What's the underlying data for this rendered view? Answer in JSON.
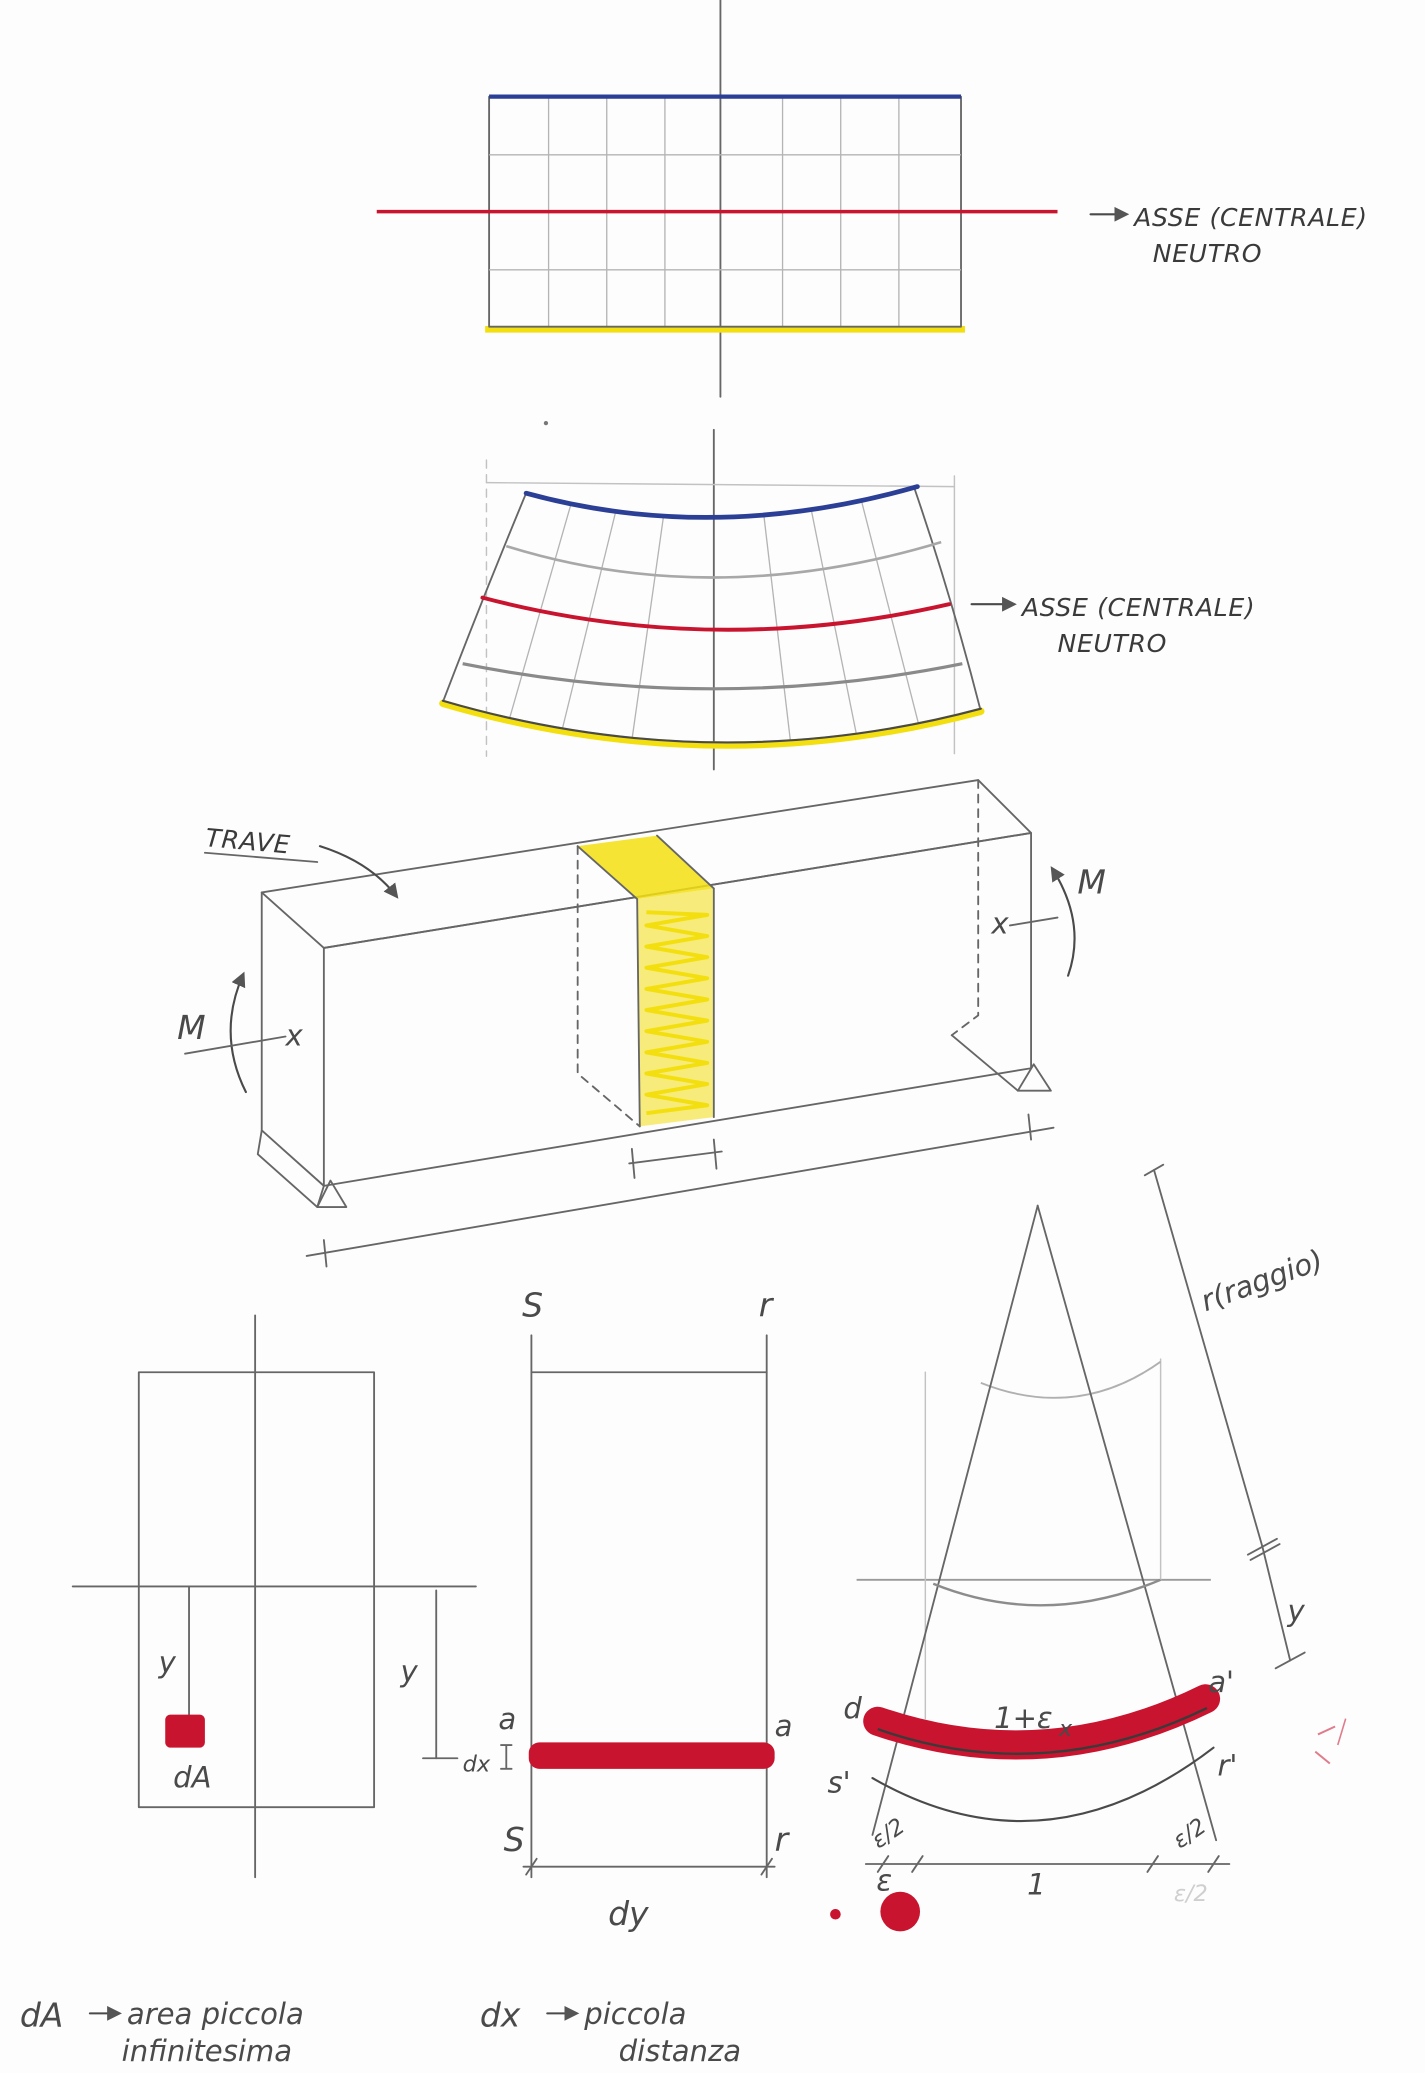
{
  "cross_section": {
    "label_line1": "ASSE (CENTRALE)",
    "label_line2": "NEUTRO"
  },
  "bent_section": {
    "label_line1": "ASSE (CENTRALE)",
    "label_line2": "NEUTRO"
  },
  "beam": {
    "title": "TRAVE",
    "moment_left": "M",
    "moment_right": "M",
    "axis_left": "x",
    "axis_right": "x"
  },
  "area_element": {
    "y": "y",
    "element": "dA"
  },
  "fiber_segment": {
    "top_left": "S",
    "top_right": "r",
    "y": "y",
    "a_left": "a",
    "a_right": "a",
    "dx": "dx",
    "bottom_left": "S",
    "bottom_right": "r",
    "dy": "dy"
  },
  "deformed_fiber": {
    "radius": "r(raggio)",
    "y": "y",
    "d": "d",
    "a_prime": "a'",
    "elongation": "1+ε",
    "elongation_sub": "x",
    "s_prime": "s'",
    "r_prime": "r'",
    "half_eps_left": "ε/2",
    "unit": "1",
    "half_eps_right": "ε/2",
    "half_eps_faded": "ε/2",
    "eps": "ε"
  },
  "legend": {
    "dA_term": "dA",
    "dA_def_1": "area piccola",
    "dA_def_2": "infinitesima",
    "dx_term": "dx",
    "dx_def_1": "piccola",
    "dx_def_2": "distanza"
  },
  "colors": {
    "blue": "#2b3f96",
    "red": "#c8142f",
    "yellow": "#f3df10",
    "pencil": "#666666"
  }
}
